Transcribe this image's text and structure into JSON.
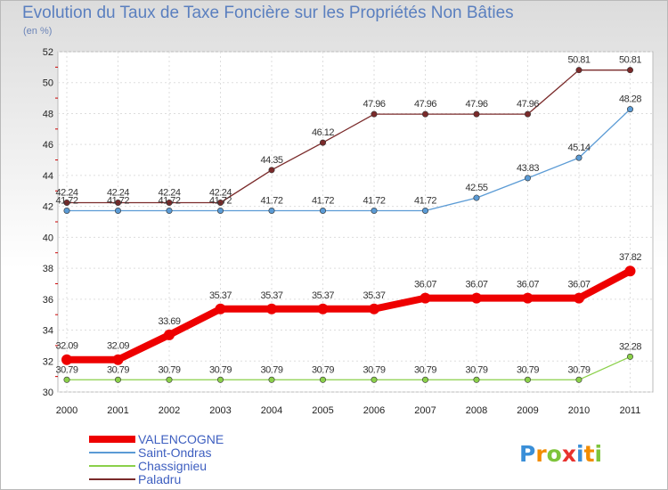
{
  "chart_data": {
    "type": "line",
    "title": "Evolution du Taux de Taxe Foncière sur les Propriétés Non Bâties",
    "ylabel": "(en %)",
    "xlabel": "",
    "ylim": [
      30,
      52
    ],
    "yticks": [
      30,
      32,
      34,
      36,
      38,
      40,
      42,
      44,
      46,
      48,
      50,
      52
    ],
    "x": [
      "2000",
      "2001",
      "2002",
      "2003",
      "2004",
      "2005",
      "2006",
      "2007",
      "2008",
      "2009",
      "2010",
      "2011"
    ],
    "series": [
      {
        "name": "VALENCOGNE",
        "color": "#ee0000",
        "values": [
          32.09,
          32.09,
          33.69,
          35.37,
          35.37,
          35.37,
          35.37,
          36.07,
          36.07,
          36.07,
          36.07,
          37.82
        ],
        "labels": [
          "32.09",
          "32.09",
          "33.69",
          "35.37",
          "35.37",
          "35.37",
          "35.37",
          "36.07",
          "36.07",
          "36.07",
          "36.07",
          "37.82"
        ]
      },
      {
        "name": "Saint-Ondras",
        "color": "#5b9bd5",
        "values": [
          41.72,
          41.72,
          41.72,
          41.72,
          41.72,
          41.72,
          41.72,
          41.72,
          42.55,
          43.83,
          45.14,
          48.28
        ],
        "labels": [
          "41.72",
          "41.72",
          "41.72",
          "41.72",
          "41.72",
          "41.72",
          "41.72",
          "41.72",
          "42.55",
          "43.83",
          "45.14",
          "48.28"
        ]
      },
      {
        "name": "Chassignieu",
        "color": "#8bd04a",
        "values": [
          30.79,
          30.79,
          30.79,
          30.79,
          30.79,
          30.79,
          30.79,
          30.79,
          30.79,
          30.79,
          30.79,
          32.28
        ],
        "labels": [
          "30.79",
          "30.79",
          "30.79",
          "30.79",
          "30.79",
          "30.79",
          "30.79",
          "30.79",
          "30.79",
          "30.79",
          "30.79",
          "32.28"
        ]
      },
      {
        "name": "Paladru",
        "color": "#7a2a2a",
        "values": [
          42.24,
          42.24,
          42.24,
          42.24,
          44.35,
          46.12,
          47.96,
          47.96,
          47.96,
          47.96,
          50.81,
          50.81
        ],
        "labels": [
          "42.24",
          "42.24",
          "42.24",
          "42.24",
          "44.35",
          "46.12",
          "47.96",
          "47.96",
          "47.96",
          "47.96",
          "50.81",
          "50.81"
        ]
      }
    ],
    "legend": [
      "VALENCOGNE",
      "Saint-Ondras",
      "Chassignieu",
      "Paladru"
    ],
    "grid": true
  },
  "logo": {
    "text": "Proxiti"
  }
}
